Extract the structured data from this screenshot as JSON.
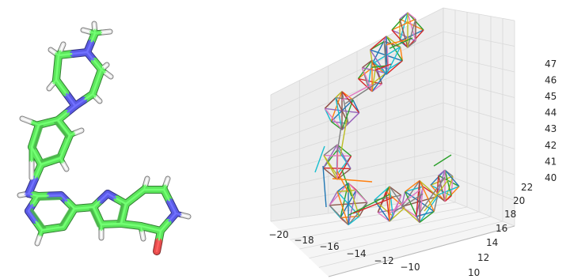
{
  "left_panel": {
    "type": "molecule-stick-render",
    "colors": {
      "carbon": "#5ce65c",
      "nitrogen": "#5a5ae6",
      "oxygen": "#e84d4d",
      "hydrogen": "#e6e6e6",
      "background": "#ffffff"
    }
  },
  "right_panel": {
    "type": "3d-wireframe",
    "axes": {
      "x_ticks": [
        "−20",
        "−18",
        "−16",
        "−14",
        "−12",
        "−10"
      ],
      "y_ticks": [
        "10",
        "12",
        "14",
        "16",
        "18",
        "20",
        "22"
      ],
      "z_ticks": [
        "40",
        "41",
        "42",
        "43",
        "44",
        "45",
        "46",
        "47"
      ]
    },
    "pane_color": "#f2f2f2",
    "grid_color": "#d9d9d9",
    "line_colors": [
      "#1f77b4",
      "#ff7f0e",
      "#2ca02c",
      "#d62728",
      "#9467bd",
      "#8c564b",
      "#e377c2",
      "#7f7f7f",
      "#bcbd22",
      "#17becf"
    ]
  }
}
